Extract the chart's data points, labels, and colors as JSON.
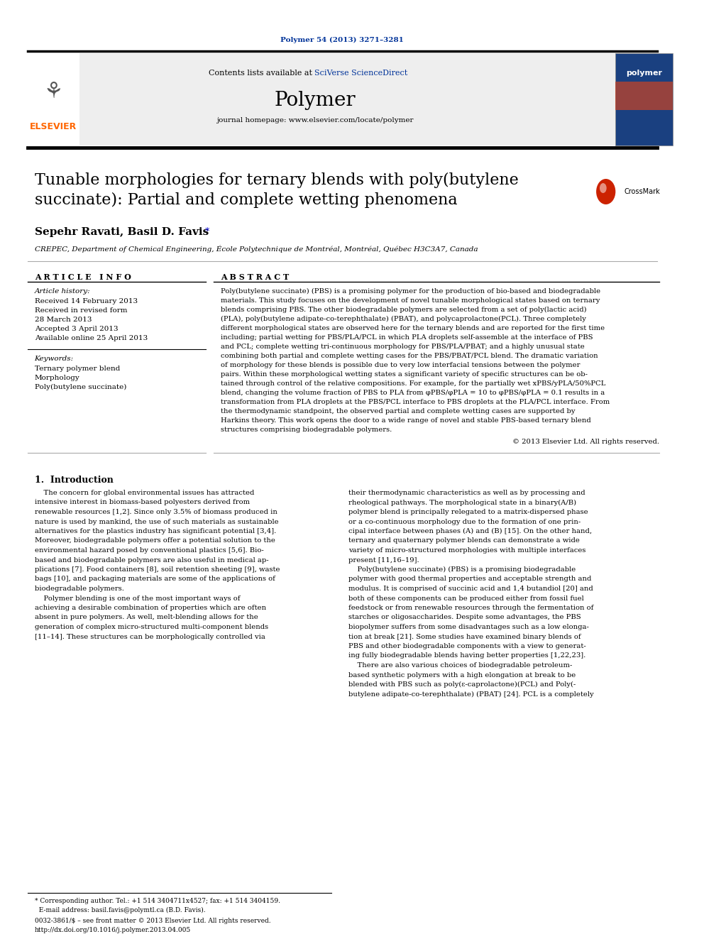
{
  "journal_ref": "Polymer 54 (2013) 3271–3281",
  "journal_ref_color": "#003399",
  "contents_text": "Contents lists available at ",
  "sciverse_text": "SciVerse ScienceDirect",
  "sciverse_color": "#003399",
  "journal_name": "Polymer",
  "homepage_text": "journal homepage: www.elsevier.com/locate/polymer",
  "elsevier_color": "#FF6600",
  "elsevier_text": "ELSEVIER",
  "title": "Tunable morphologies for ternary blends with poly(butylene\nsuccinate): Partial and complete wetting phenomena",
  "authors": "Sepehr Ravati, Basil D. Favis",
  "affiliation": "CREPEC, Department of Chemical Engineering, École Polytechnique de Montréal, Montréal, Québec H3C3A7, Canada",
  "article_info_header": "A R T I C L E   I N F O",
  "article_history_label": "Article history:",
  "keywords_label": "Keywords:",
  "keyword1": "Ternary polymer blend",
  "keyword2": "Morphology",
  "keyword3": "Poly(butylene succinate)",
  "abstract_header": "A B S T R A C T",
  "copyright_text": "© 2013 Elsevier Ltd. All rights reserved.",
  "intro_header": "1.  Introduction",
  "footnote_text": "* Corresponding author. Tel.: +1 514 3404711x4527; fax: +1 514 3404159.\n  E-mail address: basil.favis@polymtl.ca (B.D. Favis).",
  "issn_text": "0032-3861/$ – see front matter © 2013 Elsevier Ltd. All rights reserved.\nhttp://dx.doi.org/10.1016/j.polymer.2013.04.005",
  "bg_color": "#ffffff",
  "header_bg": "#eeeeee",
  "dark_bar_color": "#1a1a1a",
  "text_color": "#000000",
  "link_color": "#0000cc",
  "abstract_lines": [
    "Poly(butylene succinate) (PBS) is a promising polymer for the production of bio-based and biodegradable",
    "materials. This study focuses on the development of novel tunable morphological states based on ternary",
    "blends comprising PBS. The other biodegradable polymers are selected from a set of poly(lactic acid)",
    "(PLA), poly(butylene adipate-co-terephthalate) (PBAT), and polycaprolactone(PCL). Three completely",
    "different morphological states are observed here for the ternary blends and are reported for the first time",
    "including; partial wetting for PBS/PLA/PCL in which PLA droplets self-assemble at the interface of PBS",
    "and PCL; complete wetting tri-continuous morphology for PBS/PLA/PBAT; and a highly unusual state",
    "combining both partial and complete wetting cases for the PBS/PBAT/PCL blend. The dramatic variation",
    "of morphology for these blends is possible due to very low interfacial tensions between the polymer",
    "pairs. Within these morphological wetting states a significant variety of specific structures can be ob-",
    "tained through control of the relative compositions. For example, for the partially wet xPBS/yPLA/50%PCL",
    "blend, changing the volume fraction of PBS to PLA from φPBS/φPLA = 10 to φPBS/φPLA = 0.1 results in a",
    "transformation from PLA droplets at the PBS/PCL interface to PBS droplets at the PLA/PCL interface. From",
    "the thermodynamic standpoint, the observed partial and complete wetting cases are supported by",
    "Harkins theory. This work opens the door to a wide range of novel and stable PBS-based ternary blend",
    "structures comprising biodegradable polymers."
  ],
  "intro_col1_lines": [
    "    The concern for global environmental issues has attracted",
    "intensive interest in biomass-based polyesters derived from",
    "renewable resources [1,2]. Since only 3.5% of biomass produced in",
    "nature is used by mankind, the use of such materials as sustainable",
    "alternatives for the plastics industry has significant potential [3,4].",
    "Moreover, biodegradable polymers offer a potential solution to the",
    "environmental hazard posed by conventional plastics [5,6]. Bio-",
    "based and biodegradable polymers are also useful in medical ap-",
    "plications [7]. Food containers [8], soil retention sheeting [9], waste",
    "bags [10], and packaging materials are some of the applications of",
    "biodegradable polymers.",
    "    Polymer blending is one of the most important ways of",
    "achieving a desirable combination of properties which are often",
    "absent in pure polymers. As well, melt-blending allows for the",
    "generation of complex micro-structured multi-component blends",
    "[11–14]. These structures can be morphologically controlled via"
  ],
  "intro_col2_lines": [
    "their thermodynamic characteristics as well as by processing and",
    "rheological pathways. The morphological state in a binary(A/B)",
    "polymer blend is principally relegated to a matrix-dispersed phase",
    "or a co-continuous morphology due to the formation of one prin-",
    "cipal interface between phases (A) and (B) [15]. On the other hand,",
    "ternary and quaternary polymer blends can demonstrate a wide",
    "variety of micro-structured morphologies with multiple interfaces",
    "present [11,16–19].",
    "    Poly(butylene succinate) (PBS) is a promising biodegradable",
    "polymer with good thermal properties and acceptable strength and",
    "modulus. It is comprised of succinic acid and 1,4 butandiol [20] and",
    "both of these components can be produced either from fossil fuel",
    "feedstock or from renewable resources through the fermentation of",
    "starches or oligosaccharides. Despite some advantages, the PBS",
    "biopolymer suffers from some disadvantages such as a low elonga-",
    "tion at break [21]. Some studies have examined binary blends of",
    "PBS and other biodegradable components with a view to generat-",
    "ing fully biodegradable blends having better properties [1,22,23].",
    "    There are also various choices of biodegradable petroleum-",
    "based synthetic polymers with a high elongation at break to be",
    "blended with PBS such as poly(ε-caprolactone)(PCL) and Poly(-",
    "butylene adipate-co-terephthalate) (PBAT) [24]. PCL is a completely"
  ]
}
